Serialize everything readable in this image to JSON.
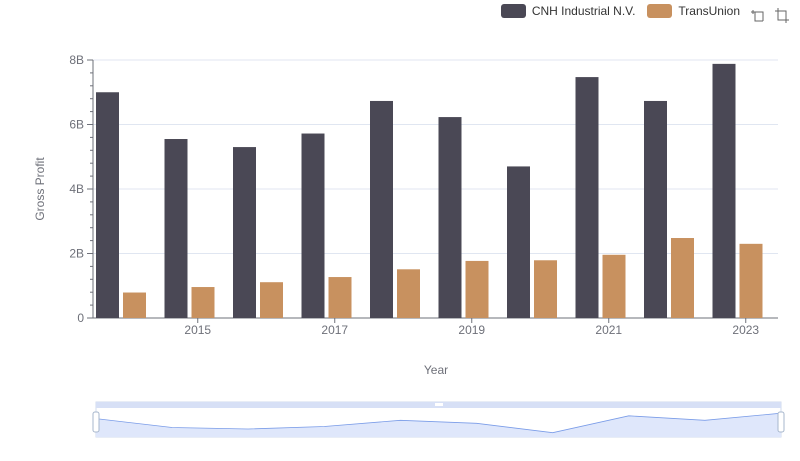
{
  "colors": {
    "series_0": "#4a4855",
    "series_1": "#c8915f",
    "grid": "#e0e6f1",
    "axis": "#6e7079",
    "zoom_fill": "#dfe7fb",
    "zoom_line": "#7a9ce8"
  },
  "icons": {
    "zoom": "zoom-icon",
    "reset": "restore-icon"
  },
  "chart_data": {
    "type": "bar",
    "title": "",
    "xlabel": "Year",
    "ylabel": "Gross Profit",
    "categories": [
      "2014",
      "2015",
      "2016",
      "2017",
      "2018",
      "2019",
      "2020",
      "2021",
      "2022",
      "2023"
    ],
    "x_tick_labels": [
      "2015",
      "2017",
      "2019",
      "2021",
      "2023"
    ],
    "y_tick_labels": [
      "0",
      "2B",
      "4B",
      "6B",
      "8B"
    ],
    "ylim": [
      0,
      8000000000
    ],
    "legend_position": "top-right",
    "grid": true,
    "series": [
      {
        "name": "CNH Industrial N.V.",
        "values": [
          7000000000,
          5550000000,
          5300000000,
          5720000000,
          6730000000,
          6230000000,
          4700000000,
          7470000000,
          6730000000,
          7880000000
        ]
      },
      {
        "name": "TransUnion",
        "values": [
          790000000,
          960000000,
          1110000000,
          1270000000,
          1510000000,
          1770000000,
          1790000000,
          1960000000,
          2480000000,
          2300000000
        ]
      }
    ]
  }
}
